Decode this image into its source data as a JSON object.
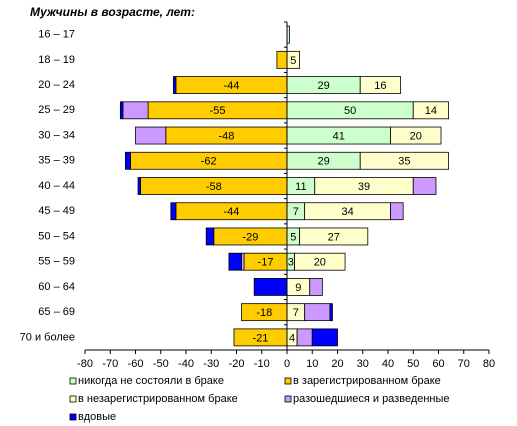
{
  "chart_data": {
    "type": "diverging_stacked_barh",
    "title": "Мужчины в возрасте, лет:",
    "categories": [
      "16 – 17",
      "18 – 19",
      "20 – 24",
      "25 – 29",
      "30 – 34",
      "35 – 39",
      "40 – 44",
      "45 – 49",
      "50 – 54",
      "55 – 59",
      "60 – 64",
      "65 – 69",
      "70 и более"
    ],
    "series": [
      {
        "name": "никогда не состояли в браке",
        "color": "#ccffcc",
        "values": [
          1,
          null,
          29,
          50,
          41,
          29,
          11,
          7,
          5,
          3,
          null,
          null,
          null
        ],
        "value_labels": [
          null,
          null,
          "29",
          "50",
          "41",
          "29",
          "11",
          "7",
          "5",
          "3",
          null,
          null,
          null
        ]
      },
      {
        "name": "в зарегистрированном браке",
        "color": "#ffcc00",
        "values": [
          null,
          -4,
          -44,
          -55,
          -48,
          -62,
          -58,
          -44,
          -29,
          -17,
          null,
          -18,
          -21
        ],
        "value_labels": [
          null,
          null,
          "-44",
          "-55",
          "-48",
          "-62",
          "-58",
          "-44",
          "-29",
          "-17",
          null,
          "-18",
          "-21"
        ]
      },
      {
        "name": "в незарегистрированном браке",
        "color": "#ffffcc",
        "values": [
          null,
          5,
          16,
          14,
          20,
          35,
          39,
          34,
          27,
          20,
          9,
          7,
          4
        ],
        "value_labels": [
          null,
          "5",
          "16",
          "14",
          "20",
          "35",
          "39",
          "34",
          "27",
          "20",
          "9",
          "7",
          "4"
        ]
      },
      {
        "name": "разошедшиеся и разведенные",
        "color": "#cc99ff",
        "values": [
          null,
          null,
          null,
          -10,
          -12,
          null,
          9,
          5,
          null,
          -1,
          5,
          10,
          6
        ]
      },
      {
        "name": "вдовые",
        "color": "#0000ff",
        "values": [
          null,
          null,
          -1,
          -1,
          null,
          -2,
          -1,
          -2,
          -3,
          -5,
          -13,
          1,
          10
        ]
      }
    ],
    "xlim": [
      -80,
      80
    ],
    "xticks": [
      -80,
      -70,
      -60,
      -50,
      -40,
      -30,
      -20,
      -10,
      0,
      10,
      20,
      30,
      40,
      50,
      60,
      70,
      80
    ]
  }
}
